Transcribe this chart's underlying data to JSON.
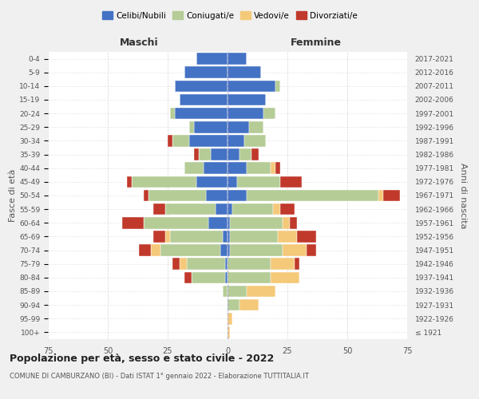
{
  "age_groups": [
    "100+",
    "95-99",
    "90-94",
    "85-89",
    "80-84",
    "75-79",
    "70-74",
    "65-69",
    "60-64",
    "55-59",
    "50-54",
    "45-49",
    "40-44",
    "35-39",
    "30-34",
    "25-29",
    "20-24",
    "15-19",
    "10-14",
    "5-9",
    "0-4"
  ],
  "birth_years": [
    "≤ 1921",
    "1922-1926",
    "1927-1931",
    "1932-1936",
    "1937-1941",
    "1942-1946",
    "1947-1951",
    "1952-1956",
    "1957-1961",
    "1962-1966",
    "1967-1971",
    "1972-1976",
    "1977-1981",
    "1982-1986",
    "1987-1991",
    "1992-1996",
    "1997-2001",
    "2002-2006",
    "2007-2011",
    "2012-2016",
    "2017-2021"
  ],
  "colors": {
    "celibi": "#4472c4",
    "coniugati": "#b5cc96",
    "vedovi": "#f5c97a",
    "divorziati": "#c0392b"
  },
  "males": {
    "celibi": [
      0,
      0,
      0,
      0,
      1,
      1,
      3,
      2,
      8,
      5,
      9,
      13,
      10,
      7,
      16,
      14,
      22,
      20,
      22,
      18,
      13
    ],
    "coniugati": [
      0,
      0,
      0,
      2,
      14,
      16,
      25,
      22,
      27,
      21,
      24,
      27,
      8,
      5,
      7,
      2,
      2,
      0,
      0,
      0,
      0
    ],
    "vedovi": [
      0,
      0,
      0,
      0,
      0,
      3,
      4,
      2,
      0,
      0,
      0,
      0,
      0,
      0,
      0,
      0,
      0,
      0,
      0,
      0,
      0
    ],
    "divorziati": [
      0,
      0,
      0,
      0,
      3,
      3,
      5,
      5,
      9,
      5,
      2,
      2,
      0,
      2,
      2,
      0,
      0,
      0,
      0,
      0,
      0
    ]
  },
  "females": {
    "nubili": [
      0,
      0,
      0,
      0,
      0,
      0,
      1,
      1,
      1,
      2,
      8,
      4,
      8,
      5,
      7,
      9,
      15,
      16,
      20,
      14,
      8
    ],
    "coniugate": [
      0,
      0,
      5,
      8,
      18,
      18,
      22,
      20,
      22,
      17,
      55,
      18,
      10,
      5,
      9,
      6,
      5,
      0,
      2,
      0,
      0
    ],
    "vedove": [
      1,
      2,
      8,
      12,
      12,
      10,
      10,
      8,
      3,
      3,
      2,
      0,
      2,
      0,
      0,
      0,
      0,
      0,
      0,
      0,
      0
    ],
    "divorziate": [
      0,
      0,
      0,
      0,
      0,
      2,
      4,
      8,
      3,
      6,
      7,
      9,
      2,
      3,
      0,
      0,
      0,
      0,
      0,
      0,
      0
    ]
  },
  "xlim": 75,
  "title": "Popolazione per età, sesso e stato civile - 2022",
  "subtitle": "COMUNE DI CAMBURZANO (BI) - Dati ISTAT 1° gennaio 2022 - Elaborazione TUTTITALIA.IT",
  "ylabel": "Fasce di età",
  "ylabel_right": "Anni di nascita",
  "xlabel_left": "Maschi",
  "xlabel_right": "Femmine",
  "legend_labels": [
    "Celibi/Nubili",
    "Coniugati/e",
    "Vedovi/e",
    "Divorziati/e"
  ],
  "bg_color": "#f0f0f0",
  "plot_bg": "#ffffff"
}
